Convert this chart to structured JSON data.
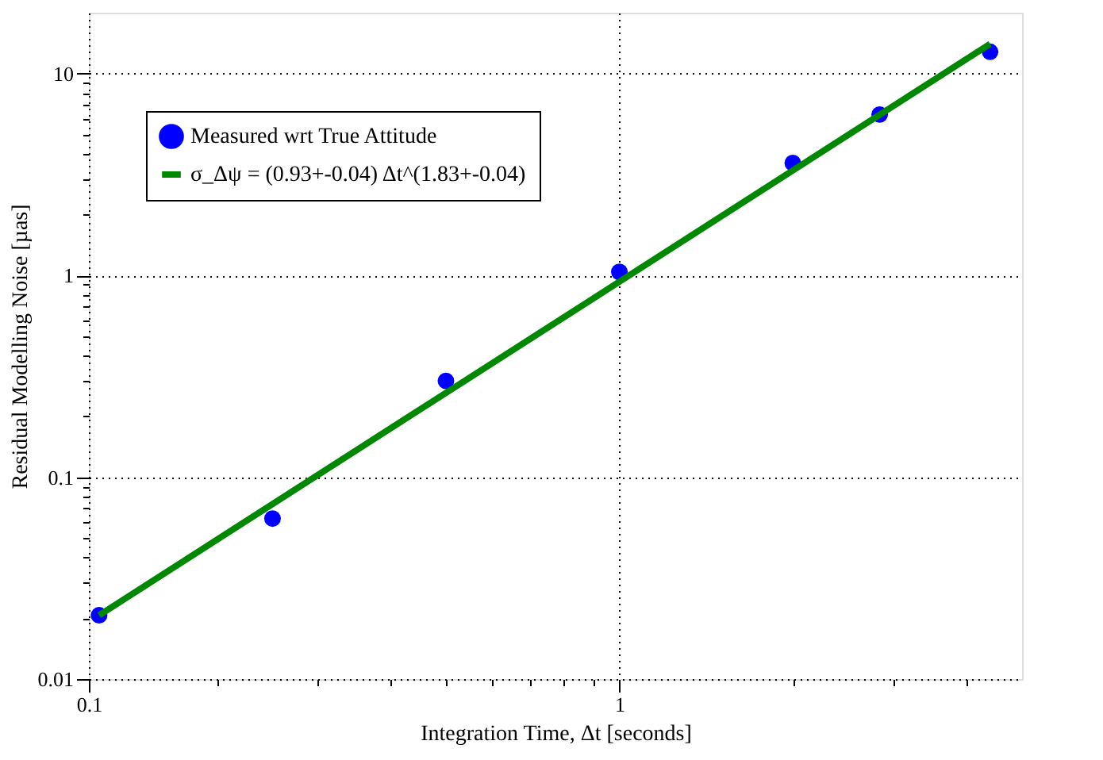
{
  "chart_data": {
    "type": "scatter",
    "xlabel": "Integration Time, Δt [seconds]",
    "ylabel": "Residual Modelling Noise [µas]",
    "x": [
      0.125,
      0.25,
      0.5,
      1,
      2,
      2.83,
      4.4
    ],
    "series": [
      {
        "name": "Measured wrt True Attitude",
        "type": "scatter",
        "color": "#0000ff",
        "marker": "circle",
        "values": [
          0.0207,
          0.0624,
          0.3,
          1.04,
          3.6,
          6.26,
          12.8
        ]
      },
      {
        "name": "σ_Δψ = (0.93+-0.04) Δt^(1.83+-0.04)",
        "type": "line",
        "color": "#008800",
        "line_style": "solid",
        "x": [
          0.125,
          4.4
        ],
        "values": [
          0.0207,
          14.0
        ]
      }
    ],
    "log": "xy",
    "xlim": [
      0.12,
      5
    ],
    "ylim": [
      0.01,
      20
    ],
    "xticks": [
      {
        "value": 0.12,
        "label": "0.1"
      },
      {
        "value": 0.2,
        "label": null
      },
      {
        "value": 0.3,
        "label": null
      },
      {
        "value": 0.4,
        "label": null
      },
      {
        "value": 0.5,
        "label": null
      },
      {
        "value": 0.6,
        "label": null
      },
      {
        "value": 0.7,
        "label": null
      },
      {
        "value": 0.8,
        "label": null
      },
      {
        "value": 0.9,
        "label": null
      },
      1,
      {
        "value": 2,
        "label": null
      },
      {
        "value": 3,
        "label": null
      },
      {
        "value": 4,
        "label": null
      }
    ],
    "yticks": [
      0.01,
      {
        "value": 0.02,
        "label": null
      },
      {
        "value": 0.03,
        "label": null
      },
      {
        "value": 0.04,
        "label": null
      },
      {
        "value": 0.05,
        "label": null
      },
      {
        "value": 0.06,
        "label": null
      },
      {
        "value": 0.07,
        "label": null
      },
      {
        "value": 0.08,
        "label": null
      },
      {
        "value": 0.09,
        "label": null
      },
      0.1,
      {
        "value": 0.2,
        "label": null
      },
      {
        "value": 0.3,
        "label": null
      },
      {
        "value": 0.4,
        "label": null
      },
      {
        "value": 0.5,
        "label": null
      },
      {
        "value": 0.6,
        "label": null
      },
      {
        "value": 0.7,
        "label": null
      },
      {
        "value": 0.8,
        "label": null
      },
      {
        "value": 0.9,
        "label": null
      },
      1,
      {
        "value": 2,
        "label": null
      },
      {
        "value": 3,
        "label": null
      },
      {
        "value": 4,
        "label": null
      },
      {
        "value": 5,
        "label": null
      },
      {
        "value": 6,
        "label": null
      },
      {
        "value": 7,
        "label": null
      },
      {
        "value": 8,
        "label": null
      },
      {
        "value": 9,
        "label": null
      },
      10
    ],
    "grid": true,
    "legend": "top left"
  }
}
